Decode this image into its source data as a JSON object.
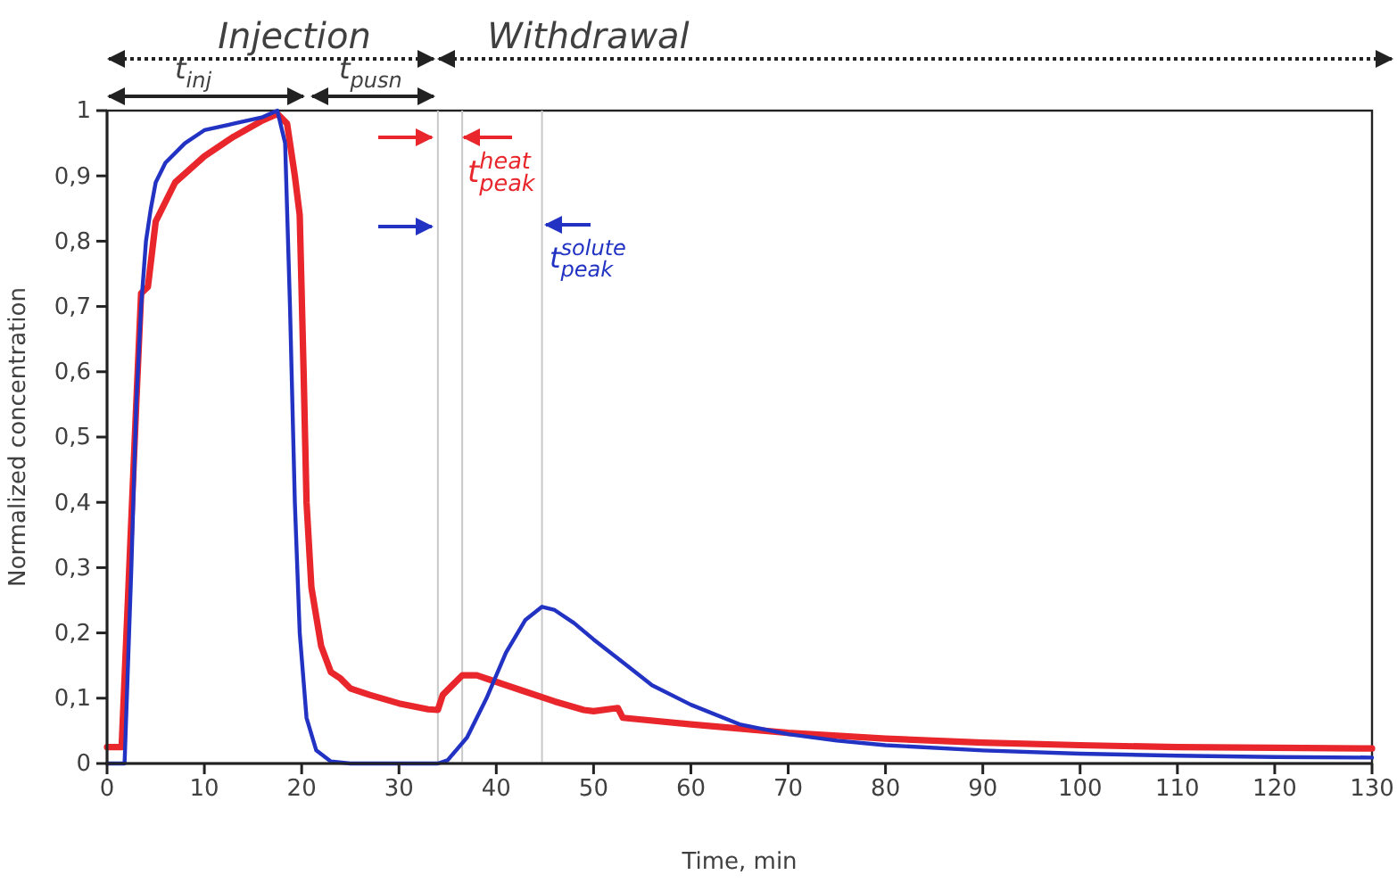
{
  "chart_data": {
    "type": "line",
    "xlabel": "Time, min",
    "ylabel": "Normalized concentration",
    "xlim": [
      0,
      130
    ],
    "xticks": [
      0,
      10,
      20,
      30,
      40,
      50,
      60,
      70,
      80,
      90,
      100,
      110,
      120,
      130
    ],
    "ylim": [
      0,
      1
    ],
    "yticks": [
      {
        "value": 0,
        "label": "0"
      },
      {
        "value": 0.1,
        "label": "0,1"
      },
      {
        "value": 0.2,
        "label": "0,2"
      },
      {
        "value": 0.3,
        "label": "0,3"
      },
      {
        "value": 0.4,
        "label": "0,4"
      },
      {
        "value": 0.5,
        "label": "0,5"
      },
      {
        "value": 0.6,
        "label": "0,6"
      },
      {
        "value": 0.7,
        "label": "0,7"
      },
      {
        "value": 0.8,
        "label": "0,8"
      },
      {
        "value": 0.9,
        "label": "0,9"
      },
      {
        "value": 1,
        "label": "1"
      }
    ],
    "grid": false,
    "marker": "none",
    "line_style": "solid",
    "series": [
      {
        "color": "#e8262b",
        "x": [
          0,
          1.5,
          2,
          3,
          3.5,
          4.2,
          5,
          7,
          10,
          13,
          16,
          17.5,
          18.5,
          19.3,
          19.8,
          20.2,
          20.5,
          21,
          22,
          23,
          24,
          25,
          27,
          30,
          33,
          34,
          34.5,
          35.5,
          36.5,
          38,
          40,
          43,
          46,
          49,
          50,
          52.5,
          53,
          60,
          70,
          80,
          90,
          100,
          110,
          120,
          130
        ],
        "values": [
          0.025,
          0.025,
          0.2,
          0.55,
          0.72,
          0.73,
          0.83,
          0.89,
          0.93,
          0.96,
          0.985,
          0.995,
          0.98,
          0.9,
          0.84,
          0.6,
          0.4,
          0.27,
          0.18,
          0.14,
          0.13,
          0.115,
          0.105,
          0.092,
          0.083,
          0.082,
          0.105,
          0.12,
          0.135,
          0.135,
          0.125,
          0.11,
          0.095,
          0.082,
          0.08,
          0.085,
          0.07,
          0.06,
          0.047,
          0.038,
          0.032,
          0.028,
          0.025,
          0.024,
          0.023
        ]
      },
      {
        "color": "#2233c4",
        "x": [
          0,
          1.8,
          2.5,
          3,
          3.5,
          4,
          4.5,
          5,
          6,
          8,
          10,
          13,
          16,
          17.5,
          18.3,
          18.8,
          19.3,
          19.8,
          20.5,
          21.5,
          23,
          25,
          34,
          35,
          37,
          39,
          41,
          43,
          44.7,
          46,
          48,
          50,
          53,
          56,
          60,
          65,
          70,
          75,
          80,
          90,
          100,
          110,
          120,
          130
        ],
        "values": [
          0,
          0,
          0.3,
          0.55,
          0.7,
          0.8,
          0.85,
          0.89,
          0.92,
          0.95,
          0.97,
          0.98,
          0.99,
          1,
          0.95,
          0.7,
          0.4,
          0.2,
          0.07,
          0.02,
          0.003,
          0,
          0,
          0.005,
          0.04,
          0.1,
          0.17,
          0.22,
          0.24,
          0.235,
          0.215,
          0.19,
          0.155,
          0.12,
          0.09,
          0.06,
          0.045,
          0.035,
          0.028,
          0.02,
          0.015,
          0.012,
          0.01,
          0.009
        ]
      }
    ],
    "ref_lines": [
      {
        "axis": "x",
        "value": 34,
        "color": "#c8c8c8"
      },
      {
        "axis": "x",
        "value": 36.5,
        "color": "#c8c8c8"
      },
      {
        "axis": "x",
        "value": 44.7,
        "color": "#c8c8c8"
      }
    ],
    "annotations": [
      "Injection",
      "Withdrawal",
      "t$_{inj}$",
      "t$_{pusn}$",
      "t$^{heat}$$_{peak}$",
      "t$^{solute}$$_{peak}$"
    ]
  }
}
